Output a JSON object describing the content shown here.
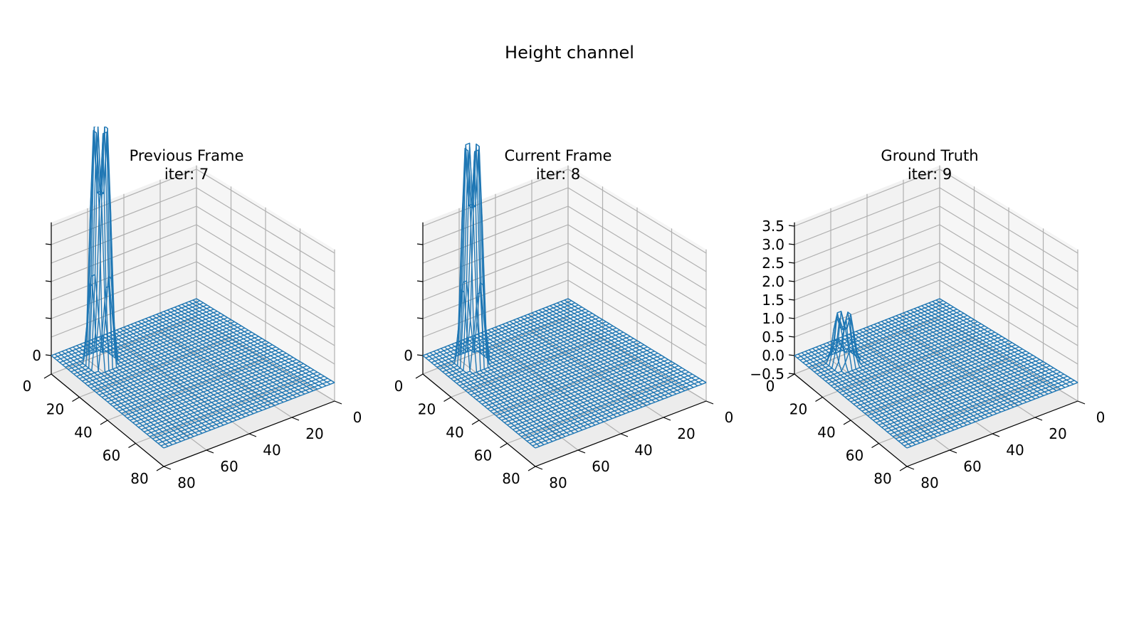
{
  "figure": {
    "suptitle": "Height channel",
    "wire_color": "#1f77b4"
  },
  "chart_data": [
    {
      "type": "wireframe3d",
      "title_line1": "Previous Frame",
      "title_line2": "iter: 7",
      "x_ticks": [
        "0",
        "20",
        "40",
        "60",
        "80"
      ],
      "y_ticks": [
        "0",
        "20",
        "40",
        "60",
        "80"
      ],
      "z_ticks": [
        "",
        "",
        "",
        "0"
      ],
      "xlim": [
        0,
        80
      ],
      "ylim": [
        0,
        80
      ],
      "zlim": [
        -0.5,
        3.6
      ],
      "grid": true,
      "bump": {
        "center": [
          15,
          15
        ],
        "radius": 5,
        "height": 6.5,
        "clipped": true
      }
    },
    {
      "type": "wireframe3d",
      "title_line1": "Current Frame",
      "title_line2": "iter: 8",
      "x_ticks": [
        "0",
        "20",
        "40",
        "60",
        "80"
      ],
      "y_ticks": [
        "0",
        "20",
        "40",
        "60",
        "80"
      ],
      "z_ticks": [
        "",
        "",
        "",
        "0"
      ],
      "xlim": [
        0,
        80
      ],
      "ylim": [
        0,
        80
      ],
      "zlim": [
        -0.5,
        3.6
      ],
      "grid": true,
      "bump": {
        "center": [
          15,
          15
        ],
        "radius": 5,
        "height": 6.0,
        "clipped": true
      }
    },
    {
      "type": "wireframe3d",
      "title_line1": "Ground Truth",
      "title_line2": "iter: 9",
      "x_ticks": [
        "0",
        "20",
        "40",
        "60",
        "80"
      ],
      "y_ticks": [
        "0",
        "20",
        "40",
        "60",
        "80"
      ],
      "z_ticks": [
        "−0.5",
        "0.0",
        "0.5",
        "1.0",
        "1.5",
        "2.0",
        "2.5",
        "3.0",
        "3.5"
      ],
      "xlim": [
        0,
        80
      ],
      "ylim": [
        0,
        80
      ],
      "zlim": [
        -0.5,
        3.6
      ],
      "grid": true,
      "bump": {
        "center": [
          15,
          15
        ],
        "radius": 5,
        "height": 1.3,
        "clipped": false
      }
    }
  ]
}
